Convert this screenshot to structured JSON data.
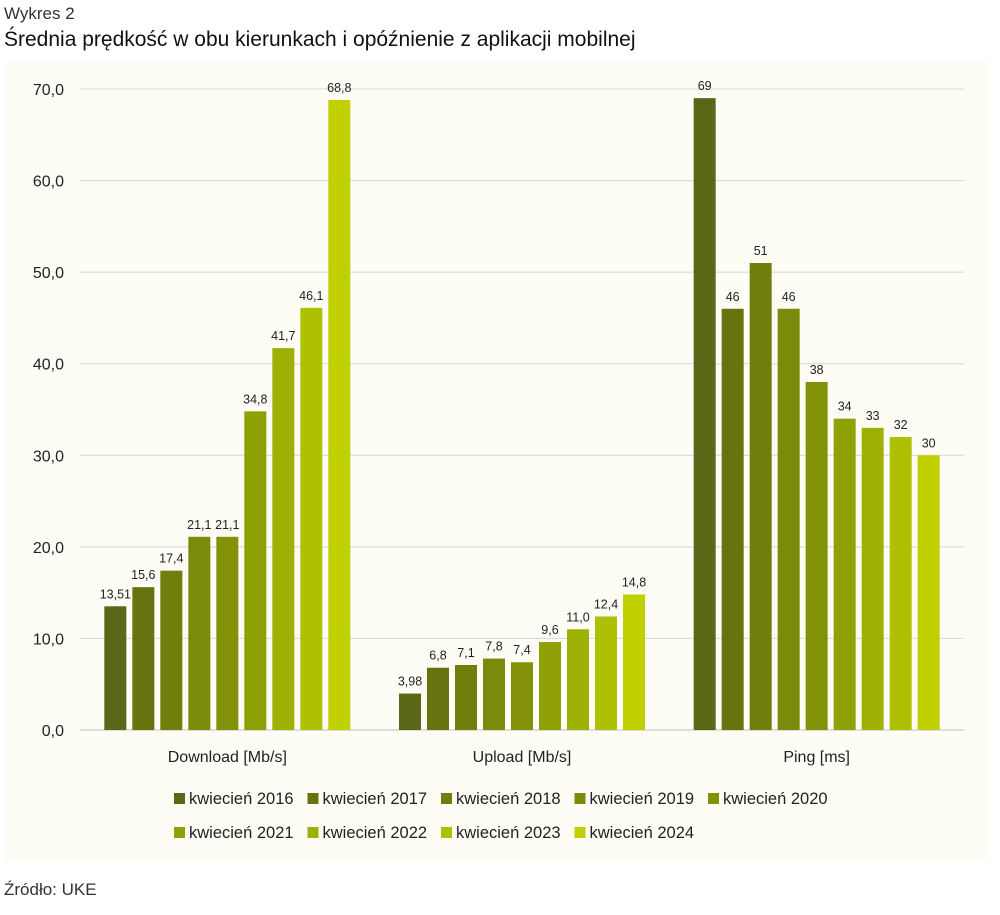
{
  "header": {
    "figure_label": "Wykres 2",
    "title": "Średnia prędkość w obu kierunkach i opóźnienie z aplikacji mobilnej"
  },
  "footer": {
    "source": "Źródło: UKE"
  },
  "chart_data": {
    "type": "bar",
    "title": "Średnia prędkość w obu kierunkach i opóźnienie z aplikacji mobilnej",
    "xlabel": "",
    "ylabel": "",
    "ylim": [
      0,
      70
    ],
    "yticks": [
      "0,0",
      "10,0",
      "20,0",
      "30,0",
      "40,0",
      "50,0",
      "60,0",
      "70,0"
    ],
    "grid": true,
    "legend_position": "bottom",
    "categories": [
      "Download [Mb/s]",
      "Upload [Mb/s]",
      "Ping [ms]"
    ],
    "series": [
      {
        "name": "kwiecień 2016",
        "color": "#5b6616",
        "values": [
          13.51,
          3.98,
          69
        ],
        "labels": [
          "13,51",
          "3,98",
          "69"
        ]
      },
      {
        "name": "kwiecień 2017",
        "color": "#68730f",
        "values": [
          15.6,
          6.8,
          46
        ],
        "labels": [
          "15,6",
          "6,8",
          "46"
        ]
      },
      {
        "name": "kwiecień 2018",
        "color": "#707e0c",
        "values": [
          17.4,
          7.1,
          51
        ],
        "labels": [
          "17,4",
          "7,1",
          "51"
        ]
      },
      {
        "name": "kwiecień 2019",
        "color": "#7b8a0a",
        "values": [
          21.1,
          7.8,
          46
        ],
        "labels": [
          "21,1",
          "7,8",
          "46"
        ]
      },
      {
        "name": "kwiecień 2020",
        "color": "#839109",
        "values": [
          21.1,
          7.4,
          38
        ],
        "labels": [
          "21,1",
          "7,4",
          "38"
        ]
      },
      {
        "name": "kwiecień 2021",
        "color": "#8fa005",
        "values": [
          34.8,
          9.6,
          34
        ],
        "labels": [
          "34,8",
          "9,6",
          "34"
        ]
      },
      {
        "name": "kwiecień 2022",
        "color": "#9db003",
        "values": [
          41.7,
          11.0,
          33
        ],
        "labels": [
          "41,7",
          "11,0",
          "33"
        ]
      },
      {
        "name": "kwiecień 2023",
        "color": "#aec002",
        "values": [
          46.1,
          12.4,
          32
        ],
        "labels": [
          "46,1",
          "12,4",
          "32"
        ]
      },
      {
        "name": "kwiecień 2024",
        "color": "#c1d000",
        "values": [
          68.8,
          14.8,
          30
        ],
        "labels": [
          "68,8",
          "14,8",
          "30"
        ]
      }
    ]
  }
}
